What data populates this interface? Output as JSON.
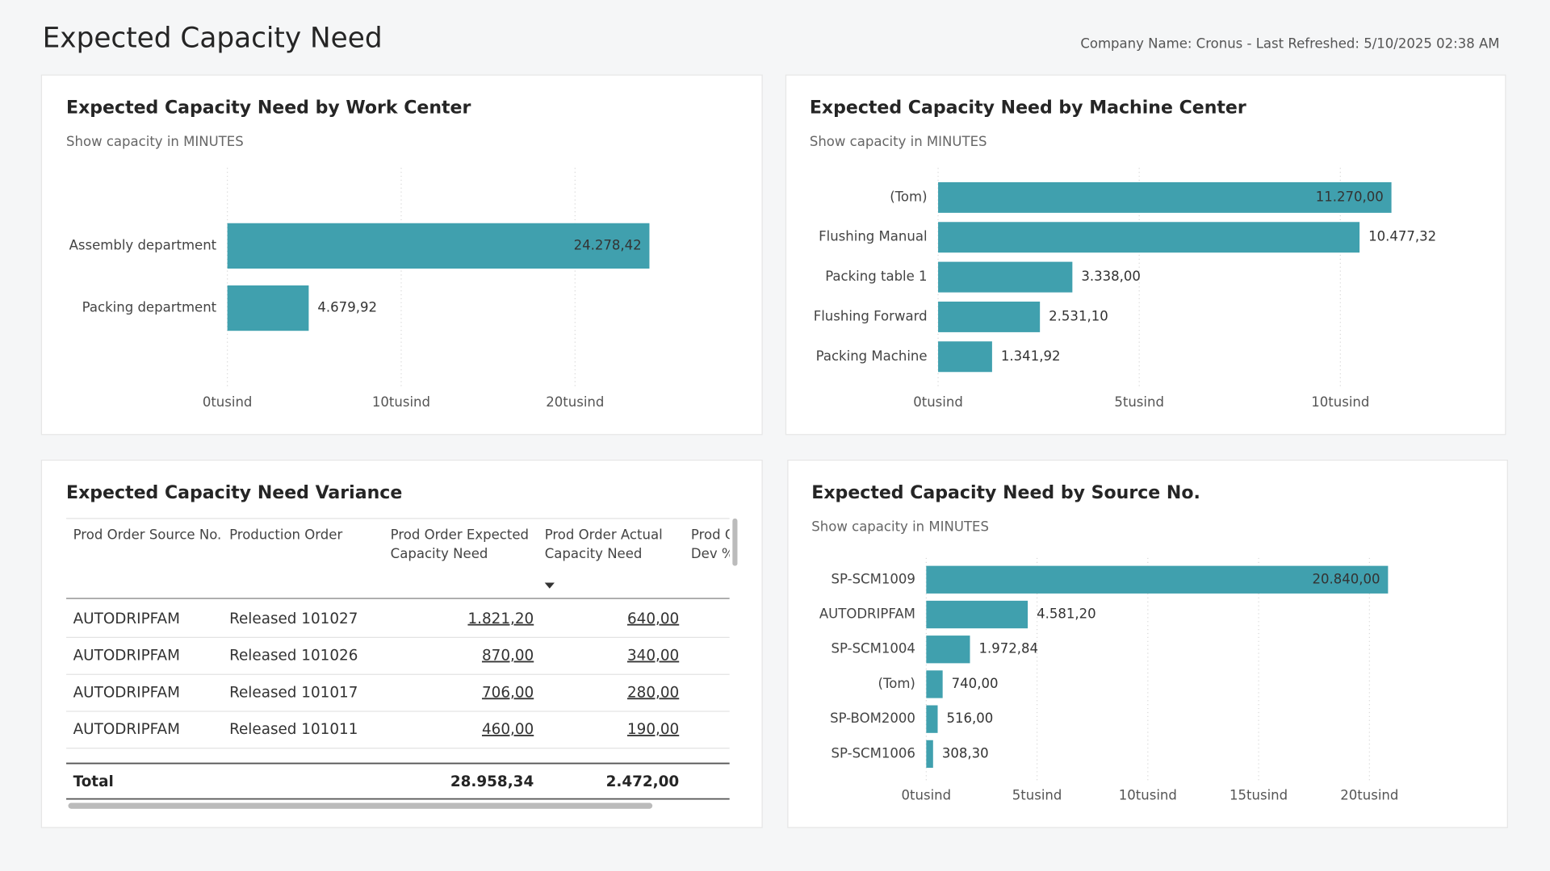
{
  "header": {
    "title": "Expected Capacity Need",
    "info": "Company Name: Cronus - Last Refreshed: 5/10/2025 02:38 AM"
  },
  "chart_data": [
    {
      "type": "bar",
      "title": "Expected Capacity Need by Work Center",
      "subtitle": "Show capacity in MINUTES",
      "categories": [
        "Assembly department",
        "Packing department"
      ],
      "values": [
        24278.42,
        4679.92
      ],
      "value_labels": [
        "24.278,42",
        "4.679,92"
      ],
      "xlim": [
        0,
        29000
      ],
      "xticks": [
        {
          "value": 0,
          "label": "0tusind"
        },
        {
          "value": 10000,
          "label": "10tusind"
        },
        {
          "value": 20000,
          "label": "20tusind"
        }
      ],
      "color": "#40a0ae",
      "grid": true
    },
    {
      "type": "bar",
      "title": "Expected Capacity Need by Machine Center",
      "subtitle": "Show capacity in MINUTES",
      "categories": [
        "(Tom)",
        "Flushing Manual",
        "Packing table 1",
        "Flushing Forward",
        "Packing Machine"
      ],
      "values": [
        11270,
        10477.32,
        3338,
        2531.1,
        1341.92
      ],
      "value_labels": [
        "11.270,00",
        "10.477,32",
        "3.338,00",
        "2.531,10",
        "1.341,92"
      ],
      "xlim": [
        0,
        13000
      ],
      "xticks": [
        {
          "value": 0,
          "label": "0tusind"
        },
        {
          "value": 5000,
          "label": "5tusind"
        },
        {
          "value": 10000,
          "label": "10tusind"
        }
      ],
      "color": "#40a0ae",
      "grid": true
    },
    {
      "type": "bar",
      "title": "Expected Capacity Need by Source No.",
      "subtitle": "Show capacity in MINUTES",
      "categories": [
        "SP-SCM1009",
        "AUTODRIPFAM",
        "SP-SCM1004",
        "(Tom)",
        "SP-BOM2000",
        "SP-SCM1006"
      ],
      "values": [
        20840,
        4581.2,
        1972.84,
        740,
        516,
        308.3
      ],
      "value_labels": [
        "20.840,00",
        "4.581,20",
        "1.972,84",
        "740,00",
        "516,00",
        "308,30"
      ],
      "xlim": [
        0,
        24000
      ],
      "xticks": [
        {
          "value": 0,
          "label": "0tusind"
        },
        {
          "value": 5000,
          "label": "5tusind"
        },
        {
          "value": 10000,
          "label": "10tusind"
        },
        {
          "value": 15000,
          "label": "15tusind"
        },
        {
          "value": 20000,
          "label": "20tusind"
        }
      ],
      "color": "#40a0ae",
      "grid": true
    }
  ],
  "table": {
    "title": "Expected Capacity Need Variance",
    "columns": [
      "Prod Order Source No.",
      "Production Order",
      "Prod Order Expected Capacity Need",
      "Prod Order Actual Capacity Need",
      "Prod Order Capacity Dev %"
    ],
    "rows": [
      [
        "AUTODRIPFAM",
        "Released 101027",
        "1.821,20",
        "640,00"
      ],
      [
        "AUTODRIPFAM",
        "Released 101026",
        "870,00",
        "340,00"
      ],
      [
        "AUTODRIPFAM",
        "Released 101017",
        "706,00",
        "280,00"
      ],
      [
        "AUTODRIPFAM",
        "Released 101011",
        "460,00",
        "190,00"
      ]
    ],
    "total": [
      "Total",
      "28.958,34",
      "2.472,00"
    ]
  }
}
